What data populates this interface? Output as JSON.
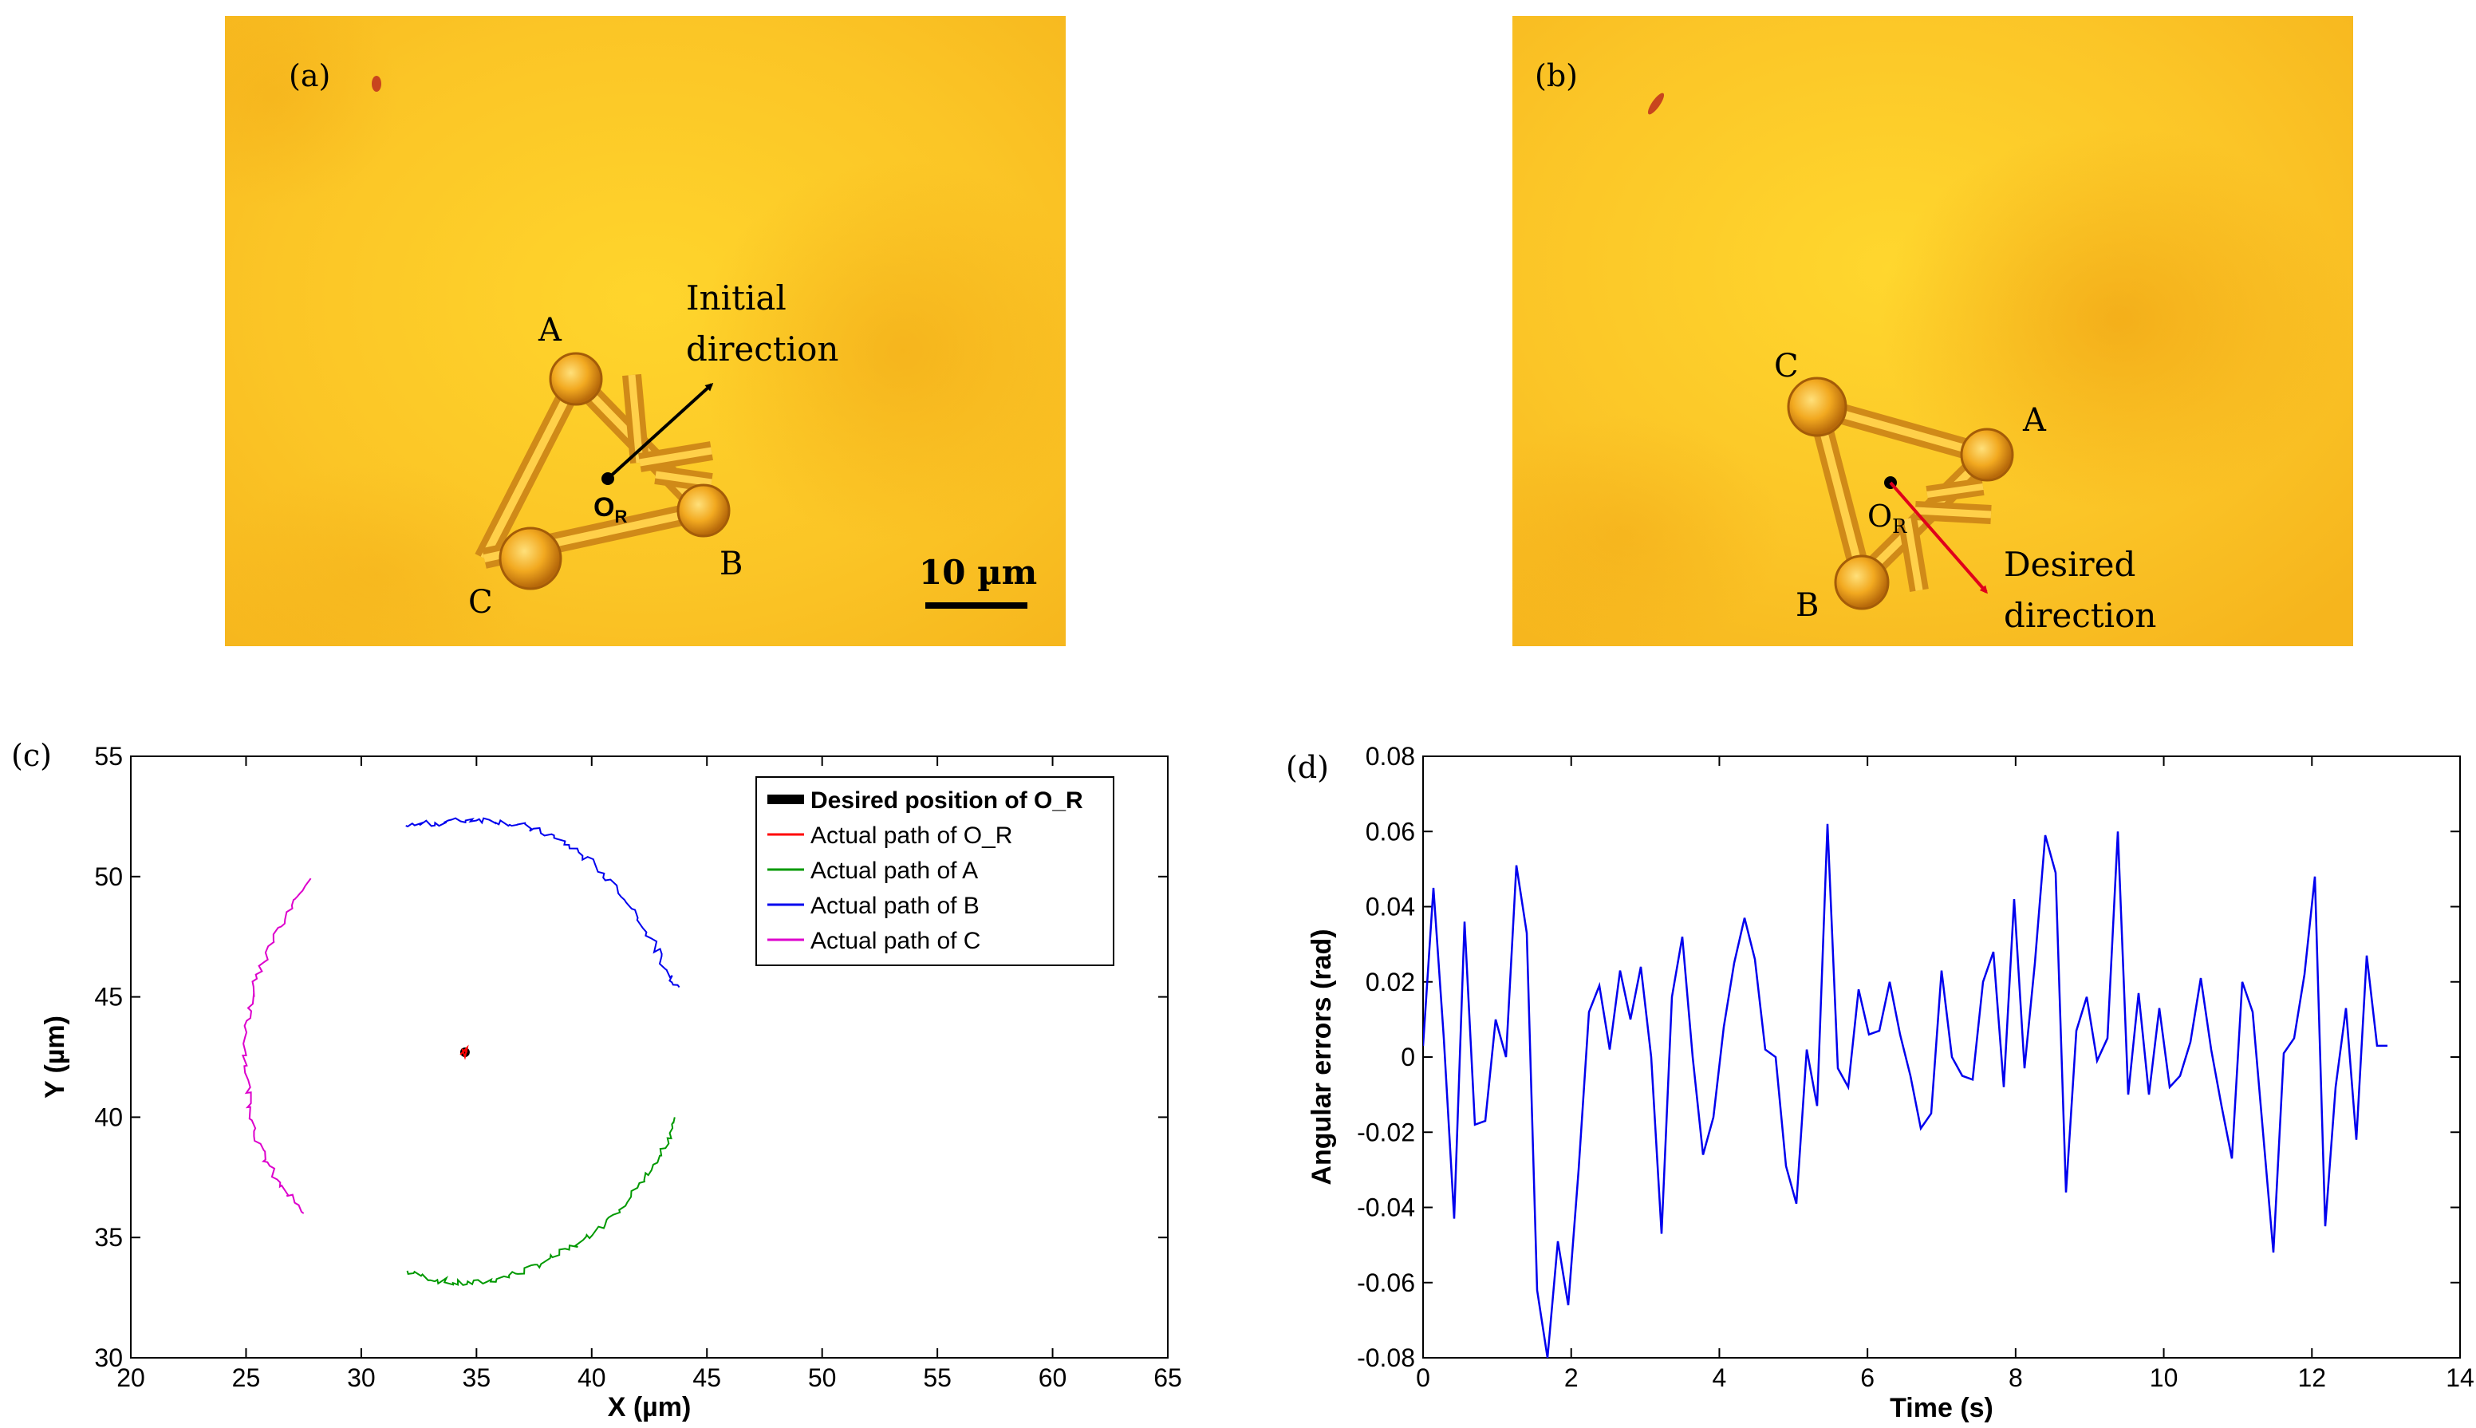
{
  "panel_a": {
    "label": "(a)",
    "labels": {
      "A": "A",
      "B": "B",
      "C": "C",
      "origin": "O",
      "origin_sub": "R"
    },
    "direction_line1": "Initial",
    "direction_line2": "direction",
    "arrow_color": "#000000",
    "scale_bar": "10 µm"
  },
  "panel_b": {
    "label": "(b)",
    "labels": {
      "A": "A",
      "B": "B",
      "C": "C",
      "origin": "O",
      "origin_sub": "R"
    },
    "direction_line1": "Desired",
    "direction_line2": "direction",
    "arrow_color": "#e0001b"
  },
  "chart_data": [
    {
      "panel_label": "(c)",
      "type": "line",
      "xlabel": "X (µm)",
      "ylabel": "Y (µm)",
      "xlim": [
        20,
        65
      ],
      "ylim": [
        30,
        55
      ],
      "xticks": [
        20,
        25,
        30,
        35,
        40,
        45,
        50,
        55,
        60,
        65
      ],
      "yticks": [
        30,
        35,
        40,
        45,
        50,
        55
      ],
      "legend_position": "top-right",
      "legend": [
        "Desired position of O_R",
        "Actual path of O_R",
        "Actual path of A",
        "Actual path of B",
        "Actual path of C"
      ],
      "series": [
        {
          "name": "Desired position of O_R",
          "color": "#000000",
          "points": [
            [
              34.5,
              42.7
            ]
          ]
        },
        {
          "name": "Actual path of O_R",
          "color": "#ff0000",
          "points": [
            [
              34.3,
              42.6
            ],
            [
              34.6,
              42.9
            ],
            [
              34.5,
              42.5
            ],
            [
              34.4,
              42.8
            ],
            [
              34.6,
              42.7
            ]
          ]
        },
        {
          "name": "Actual path of A",
          "color": "#009900",
          "points": [
            [
              32.0,
              33.6
            ],
            [
              33.0,
              33.3
            ],
            [
              34.0,
              33.1
            ],
            [
              35.0,
              33.1
            ],
            [
              36.0,
              33.3
            ],
            [
              37.0,
              33.6
            ],
            [
              38.0,
              34.0
            ],
            [
              39.0,
              34.5
            ],
            [
              40.0,
              35.1
            ],
            [
              41.0,
              36.0
            ],
            [
              42.0,
              37.0
            ],
            [
              42.8,
              38.0
            ],
            [
              43.3,
              39.0
            ],
            [
              43.6,
              40.0
            ]
          ]
        },
        {
          "name": "Actual path of B",
          "color": "#0000ee",
          "points": [
            [
              31.8,
              52.1
            ],
            [
              33.0,
              52.2
            ],
            [
              34.0,
              52.3
            ],
            [
              35.0,
              52.4
            ],
            [
              36.0,
              52.3
            ],
            [
              37.0,
              52.1
            ],
            [
              38.0,
              51.8
            ],
            [
              39.0,
              51.3
            ],
            [
              40.0,
              50.6
            ],
            [
              41.0,
              49.6
            ],
            [
              42.0,
              48.4
            ],
            [
              42.8,
              47.0
            ],
            [
              43.3,
              46.0
            ],
            [
              43.8,
              45.4
            ]
          ]
        },
        {
          "name": "Actual path of C",
          "color": "#dd00cc",
          "points": [
            [
              27.8,
              49.8
            ],
            [
              27.0,
              48.8
            ],
            [
              26.3,
              47.6
            ],
            [
              25.7,
              46.3
            ],
            [
              25.2,
              45.0
            ],
            [
              25.0,
              43.5
            ],
            [
              25.0,
              42.0
            ],
            [
              25.2,
              40.5
            ],
            [
              25.5,
              39.0
            ],
            [
              26.0,
              37.9
            ],
            [
              26.7,
              36.9
            ],
            [
              27.5,
              36.0
            ]
          ]
        }
      ]
    },
    {
      "panel_label": "(d)",
      "type": "line",
      "xlabel": "Time (s)",
      "ylabel": "Angular errors (rad)",
      "xlim": [
        0,
        14
      ],
      "ylim": [
        -0.08,
        0.08
      ],
      "xticks": [
        0,
        2,
        4,
        6,
        8,
        10,
        12,
        14
      ],
      "yticks": [
        -0.08,
        -0.06,
        -0.04,
        -0.02,
        0,
        0.02,
        0.04,
        0.06,
        0.08
      ],
      "series": [
        {
          "name": "Angular error",
          "color": "#0000ee",
          "x": [
            0.0,
            0.14,
            0.28,
            0.42,
            0.56,
            0.7,
            0.84,
            0.98,
            1.12,
            1.26,
            1.4,
            1.54,
            1.68,
            1.82,
            1.96,
            2.1,
            2.24,
            2.38,
            2.52,
            2.66,
            2.8,
            2.94,
            3.08,
            3.22,
            3.36,
            3.5,
            3.64,
            3.78,
            3.92,
            4.06,
            4.2,
            4.34,
            4.48,
            4.62,
            4.76,
            4.9,
            5.04,
            5.18,
            5.32,
            5.46,
            5.6,
            5.74,
            5.88,
            6.02,
            6.16,
            6.3,
            6.44,
            6.58,
            6.72,
            6.86,
            7.0,
            7.14,
            7.28,
            7.42,
            7.56,
            7.7,
            7.84,
            7.98,
            8.12,
            8.26,
            8.4,
            8.54,
            8.68,
            8.82,
            8.96,
            9.1,
            9.24,
            9.38,
            9.52,
            9.66,
            9.8,
            9.94,
            10.08,
            10.22,
            10.36,
            10.5,
            10.64,
            10.78,
            10.92,
            11.06,
            11.2,
            11.34,
            11.48,
            11.62,
            11.76,
            11.9,
            12.04,
            12.18,
            12.32,
            12.46,
            12.6,
            12.74,
            12.88,
            13.02
          ],
          "y": [
            0.003,
            0.045,
            0.005,
            -0.043,
            0.036,
            -0.018,
            -0.017,
            0.01,
            0.0,
            0.051,
            0.033,
            -0.062,
            -0.08,
            -0.049,
            -0.066,
            -0.03,
            0.012,
            0.019,
            0.002,
            0.023,
            0.01,
            0.024,
            0.0,
            -0.047,
            0.016,
            0.032,
            0.0,
            -0.026,
            -0.016,
            0.008,
            0.025,
            0.037,
            0.026,
            0.002,
            0.0,
            -0.029,
            -0.039,
            0.002,
            -0.013,
            0.062,
            -0.003,
            -0.008,
            0.018,
            0.006,
            0.007,
            0.02,
            0.006,
            -0.005,
            -0.019,
            -0.015,
            0.023,
            0.0,
            -0.005,
            -0.006,
            0.02,
            0.028,
            -0.008,
            0.042,
            -0.003,
            0.025,
            0.059,
            0.049,
            -0.036,
            0.007,
            0.016,
            -0.001,
            0.005,
            0.06,
            -0.01,
            0.017,
            -0.01,
            0.013,
            -0.008,
            -0.005,
            0.004,
            0.021,
            0.002,
            -0.013,
            -0.027,
            0.02,
            0.012,
            -0.02,
            -0.052,
            0.001,
            0.005,
            0.022,
            0.048,
            -0.045,
            -0.008,
            0.013,
            -0.022,
            0.027,
            0.003,
            0.003
          ]
        }
      ]
    }
  ]
}
